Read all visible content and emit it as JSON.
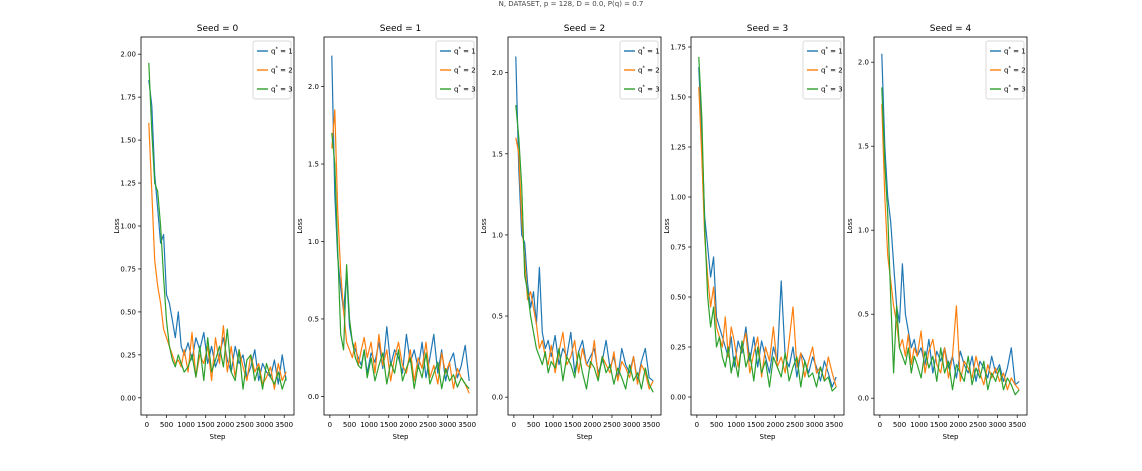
{
  "figure": {
    "suptitle": "N, DATASET, p = 128, D = 0.0, P(q) = 0.7"
  },
  "colors": {
    "series1": "#1f77b4",
    "series2": "#ff7f0e",
    "series3": "#2ca02c"
  },
  "chart_data": [
    {
      "type": "line",
      "title": "Seed = 0",
      "xlabel": "Step",
      "ylabel": "Loss",
      "xlim": [
        -150,
        3750
      ],
      "ylim": [
        -0.1,
        2.1
      ],
      "xticks": [
        0,
        500,
        1000,
        1500,
        2000,
        2500,
        3000,
        3500
      ],
      "yticks": [
        0.0,
        0.25,
        0.5,
        0.75,
        1.0,
        1.25,
        1.5,
        1.75,
        2.0
      ],
      "ytick_labels": [
        "0.00",
        "0.25",
        "0.50",
        "0.75",
        "1.00",
        "1.25",
        "1.50",
        "1.75",
        "2.00"
      ],
      "legend": "top-right",
      "grid": false,
      "x": [
        50,
        125,
        200,
        275,
        350,
        425,
        500,
        575,
        650,
        725,
        800,
        875,
        950,
        1050,
        1150,
        1250,
        1350,
        1450,
        1550,
        1650,
        1750,
        1850,
        1950,
        2050,
        2150,
        2250,
        2350,
        2450,
        2550,
        2650,
        2750,
        2850,
        2950,
        3050,
        3150,
        3250,
        3350,
        3450,
        3550
      ],
      "series": [
        {
          "name": "q* = 1",
          "color_key": "series1",
          "values": [
            1.85,
            1.7,
            1.3,
            1.1,
            0.9,
            0.95,
            0.6,
            0.55,
            0.45,
            0.35,
            0.5,
            0.3,
            0.25,
            0.32,
            0.22,
            0.35,
            0.28,
            0.38,
            0.2,
            0.3,
            0.18,
            0.25,
            0.35,
            0.22,
            0.15,
            0.3,
            0.2,
            0.25,
            0.12,
            0.18,
            0.28,
            0.1,
            0.2,
            0.15,
            0.12,
            0.22,
            0.08,
            0.25,
            0.1
          ]
        },
        {
          "name": "q* = 2",
          "color_key": "series2",
          "values": [
            1.6,
            1.2,
            0.8,
            0.65,
            0.55,
            0.4,
            0.35,
            0.3,
            0.25,
            0.2,
            0.22,
            0.18,
            0.28,
            0.15,
            0.38,
            0.12,
            0.25,
            0.2,
            0.3,
            0.1,
            0.35,
            0.2,
            0.42,
            0.15,
            0.3,
            0.12,
            0.28,
            0.18,
            0.1,
            0.25,
            0.15,
            0.2,
            0.08,
            0.12,
            0.18,
            0.05,
            0.2,
            0.1,
            0.15
          ]
        },
        {
          "name": "q* = 3",
          "color_key": "series3",
          "values": [
            1.95,
            1.55,
            1.25,
            1.2,
            1.0,
            0.7,
            0.45,
            0.3,
            0.22,
            0.18,
            0.25,
            0.2,
            0.15,
            0.18,
            0.25,
            0.12,
            0.3,
            0.1,
            0.35,
            0.15,
            0.22,
            0.3,
            0.18,
            0.4,
            0.15,
            0.1,
            0.28,
            0.05,
            0.22,
            0.25,
            0.1,
            0.18,
            0.05,
            0.2,
            0.12,
            0.08,
            0.15,
            0.05,
            0.12
          ]
        }
      ]
    },
    {
      "type": "line",
      "title": "Seed = 1",
      "xlabel": "Step",
      "ylabel": "Loss",
      "xlim": [
        -150,
        3750
      ],
      "ylim": [
        -0.12,
        2.32
      ],
      "xticks": [
        0,
        500,
        1000,
        1500,
        2000,
        2500,
        3000,
        3500
      ],
      "yticks": [
        0.0,
        0.5,
        1.0,
        1.5,
        2.0
      ],
      "ytick_labels": [
        "0.0",
        "0.5",
        "1.0",
        "1.5",
        "2.0"
      ],
      "legend": "top-right",
      "grid": false,
      "x": [
        50,
        125,
        200,
        275,
        350,
        425,
        500,
        575,
        650,
        725,
        800,
        875,
        950,
        1050,
        1150,
        1250,
        1350,
        1450,
        1550,
        1650,
        1750,
        1850,
        1950,
        2050,
        2150,
        2250,
        2350,
        2450,
        2550,
        2650,
        2750,
        2850,
        2950,
        3050,
        3150,
        3250,
        3350,
        3450,
        3550
      ],
      "series": [
        {
          "name": "q* = 1",
          "color_key": "series1",
          "values": [
            2.2,
            1.3,
            0.9,
            0.7,
            0.55,
            0.8,
            0.45,
            0.35,
            0.3,
            0.25,
            0.2,
            0.3,
            0.15,
            0.28,
            0.22,
            0.35,
            0.18,
            0.45,
            0.2,
            0.3,
            0.25,
            0.15,
            0.4,
            0.22,
            0.3,
            0.18,
            0.35,
            0.12,
            0.25,
            0.4,
            0.15,
            0.3,
            0.1,
            0.22,
            0.28,
            0.12,
            0.2,
            0.33,
            0.1
          ]
        },
        {
          "name": "q* = 2",
          "color_key": "series2",
          "values": [
            1.6,
            1.85,
            1.2,
            0.8,
            0.55,
            0.35,
            0.3,
            0.25,
            0.35,
            0.2,
            0.3,
            0.38,
            0.25,
            0.35,
            0.15,
            0.4,
            0.2,
            0.3,
            0.1,
            0.25,
            0.35,
            0.2,
            0.15,
            0.3,
            0.1,
            0.25,
            0.18,
            0.35,
            0.12,
            0.2,
            0.08,
            0.28,
            0.15,
            0.22,
            0.05,
            0.18,
            0.12,
            0.08,
            0.02
          ]
        },
        {
          "name": "q* = 3",
          "color_key": "series3",
          "values": [
            1.7,
            1.5,
            0.95,
            0.4,
            0.3,
            0.85,
            0.5,
            0.35,
            0.25,
            0.2,
            0.18,
            0.3,
            0.12,
            0.25,
            0.1,
            0.2,
            0.28,
            0.08,
            0.22,
            0.15,
            0.3,
            0.1,
            0.18,
            0.25,
            0.05,
            0.2,
            0.12,
            0.28,
            0.08,
            0.15,
            0.22,
            0.05,
            0.18,
            0.1,
            0.14,
            0.06,
            0.12,
            0.08,
            0.05
          ]
        }
      ]
    },
    {
      "type": "line",
      "title": "Seed = 2",
      "xlabel": "Step",
      "ylabel": "Loss",
      "xlim": [
        -150,
        3750
      ],
      "ylim": [
        -0.11,
        2.22
      ],
      "xticks": [
        0,
        500,
        1000,
        1500,
        2000,
        2500,
        3000,
        3500
      ],
      "yticks": [
        0.0,
        0.5,
        1.0,
        1.5,
        2.0
      ],
      "ytick_labels": [
        "0.0",
        "0.5",
        "1.0",
        "1.5",
        "2.0"
      ],
      "legend": "top-right",
      "grid": false,
      "x": [
        50,
        125,
        200,
        275,
        350,
        425,
        500,
        575,
        650,
        725,
        800,
        875,
        950,
        1050,
        1150,
        1250,
        1350,
        1450,
        1550,
        1650,
        1750,
        1850,
        1950,
        2050,
        2150,
        2250,
        2350,
        2450,
        2550,
        2650,
        2750,
        2850,
        2950,
        3050,
        3150,
        3250,
        3350,
        3450,
        3550
      ],
      "series": [
        {
          "name": "q* = 1",
          "color_key": "series1",
          "values": [
            2.1,
            1.4,
            1.0,
            0.95,
            0.7,
            0.55,
            0.65,
            0.45,
            0.8,
            0.4,
            0.3,
            0.35,
            0.25,
            0.38,
            0.2,
            0.3,
            0.25,
            0.4,
            0.15,
            0.28,
            0.35,
            0.2,
            0.25,
            0.3,
            0.15,
            0.22,
            0.35,
            0.18,
            0.25,
            0.12,
            0.3,
            0.2,
            0.15,
            0.25,
            0.1,
            0.22,
            0.3,
            0.12,
            0.1
          ]
        },
        {
          "name": "q* = 2",
          "color_key": "series2",
          "values": [
            1.6,
            1.5,
            1.1,
            0.85,
            0.6,
            0.65,
            0.55,
            0.45,
            0.3,
            0.35,
            0.25,
            0.2,
            0.32,
            0.15,
            0.28,
            0.4,
            0.2,
            0.25,
            0.35,
            0.15,
            0.3,
            0.2,
            0.18,
            0.35,
            0.12,
            0.25,
            0.2,
            0.15,
            0.28,
            0.1,
            0.22,
            0.18,
            0.12,
            0.25,
            0.08,
            0.2,
            0.15,
            0.05,
            0.1
          ]
        },
        {
          "name": "q* = 3",
          "color_key": "series3",
          "values": [
            1.8,
            1.6,
            1.3,
            0.75,
            0.65,
            0.5,
            0.4,
            0.3,
            0.25,
            0.2,
            0.28,
            0.15,
            0.22,
            0.18,
            0.3,
            0.1,
            0.25,
            0.2,
            0.12,
            0.28,
            0.15,
            0.05,
            0.22,
            0.18,
            0.1,
            0.25,
            0.15,
            0.2,
            0.08,
            0.18,
            0.12,
            0.05,
            0.2,
            0.1,
            0.15,
            0.05,
            0.18,
            0.08,
            0.03
          ]
        }
      ]
    },
    {
      "type": "line",
      "title": "Seed = 3",
      "xlabel": "Step",
      "ylabel": "Loss",
      "xlim": [
        -150,
        3750
      ],
      "ylim": [
        -0.09,
        1.8
      ],
      "xticks": [
        0,
        500,
        1000,
        1500,
        2000,
        2500,
        3000,
        3500
      ],
      "yticks": [
        0.0,
        0.25,
        0.5,
        0.75,
        1.0,
        1.25,
        1.5,
        1.75
      ],
      "ytick_labels": [
        "0.00",
        "0.25",
        "0.50",
        "0.75",
        "1.00",
        "1.25",
        "1.50",
        "1.75"
      ],
      "legend": "top-right",
      "grid": false,
      "x": [
        50,
        125,
        200,
        275,
        350,
        425,
        500,
        575,
        650,
        725,
        800,
        875,
        950,
        1050,
        1150,
        1250,
        1350,
        1450,
        1550,
        1650,
        1750,
        1850,
        1950,
        2050,
        2150,
        2250,
        2350,
        2450,
        2550,
        2650,
        2750,
        2850,
        2950,
        3050,
        3150,
        3250,
        3350,
        3450,
        3550
      ],
      "series": [
        {
          "name": "q* = 1",
          "color_key": "series1",
          "values": [
            1.65,
            1.3,
            0.9,
            0.75,
            0.6,
            0.7,
            0.4,
            0.35,
            0.3,
            0.25,
            0.2,
            0.3,
            0.15,
            0.28,
            0.22,
            0.35,
            0.18,
            0.3,
            0.15,
            0.28,
            0.2,
            0.12,
            0.25,
            0.18,
            0.58,
            0.2,
            0.15,
            0.25,
            0.1,
            0.22,
            0.18,
            0.12,
            0.2,
            0.15,
            0.08,
            0.18,
            0.12,
            0.05,
            0.1
          ]
        },
        {
          "name": "q* = 2",
          "color_key": "series2",
          "values": [
            1.55,
            1.2,
            0.8,
            0.6,
            0.45,
            0.55,
            0.35,
            0.3,
            0.25,
            0.4,
            0.2,
            0.35,
            0.28,
            0.15,
            0.25,
            0.32,
            0.12,
            0.22,
            0.3,
            0.1,
            0.25,
            0.18,
            0.35,
            0.15,
            0.2,
            0.12,
            0.28,
            0.45,
            0.15,
            0.22,
            0.1,
            0.18,
            0.25,
            0.12,
            0.15,
            0.08,
            0.2,
            0.12,
            0.05
          ]
        },
        {
          "name": "q* = 3",
          "color_key": "series3",
          "values": [
            1.7,
            1.4,
            0.85,
            0.5,
            0.35,
            0.45,
            0.25,
            0.3,
            0.2,
            0.15,
            0.25,
            0.12,
            0.2,
            0.1,
            0.28,
            0.15,
            0.22,
            0.08,
            0.25,
            0.12,
            0.18,
            0.05,
            0.2,
            0.15,
            0.1,
            0.22,
            0.08,
            0.15,
            0.2,
            0.05,
            0.18,
            0.1,
            0.12,
            0.05,
            0.15,
            0.08,
            0.1,
            0.03,
            0.05
          ]
        }
      ]
    },
    {
      "type": "line",
      "title": "Seed = 4",
      "xlabel": "Step",
      "ylabel": "Loss",
      "xlim": [
        -150,
        3750
      ],
      "ylim": [
        -0.1,
        2.15
      ],
      "xticks": [
        0,
        500,
        1000,
        1500,
        2000,
        2500,
        3000,
        3500
      ],
      "yticks": [
        0.0,
        0.5,
        1.0,
        1.5,
        2.0
      ],
      "ytick_labels": [
        "0.0",
        "0.5",
        "1.0",
        "1.5",
        "2.0"
      ],
      "legend": "top-right",
      "grid": false,
      "x": [
        50,
        125,
        200,
        275,
        350,
        425,
        500,
        575,
        650,
        725,
        800,
        875,
        950,
        1050,
        1150,
        1250,
        1350,
        1450,
        1550,
        1650,
        1750,
        1850,
        1950,
        2050,
        2150,
        2250,
        2350,
        2450,
        2550,
        2650,
        2750,
        2850,
        2950,
        3050,
        3150,
        3250,
        3350,
        3450,
        3550
      ],
      "series": [
        {
          "name": "q* = 1",
          "color_key": "series1",
          "values": [
            2.05,
            1.5,
            1.2,
            1.05,
            0.8,
            0.55,
            0.45,
            0.8,
            0.5,
            0.4,
            0.3,
            0.35,
            0.25,
            0.3,
            0.2,
            0.35,
            0.15,
            0.28,
            0.22,
            0.3,
            0.18,
            0.25,
            0.12,
            0.28,
            0.2,
            0.15,
            0.25,
            0.1,
            0.22,
            0.18,
            0.12,
            0.25,
            0.15,
            0.2,
            0.1,
            0.18,
            0.3,
            0.08,
            0.1
          ]
        },
        {
          "name": "q* = 2",
          "color_key": "series2",
          "values": [
            1.75,
            1.2,
            0.85,
            0.7,
            0.55,
            0.45,
            0.3,
            0.35,
            0.25,
            0.38,
            0.2,
            0.3,
            0.25,
            0.4,
            0.15,
            0.28,
            0.35,
            0.2,
            0.15,
            0.3,
            0.12,
            0.25,
            0.55,
            0.1,
            0.22,
            0.18,
            0.12,
            0.25,
            0.15,
            0.08,
            0.2,
            0.12,
            0.18,
            0.1,
            0.15,
            0.05,
            0.12,
            0.08,
            0.05
          ]
        },
        {
          "name": "q* = 3",
          "color_key": "series3",
          "values": [
            1.85,
            1.4,
            1.1,
            0.6,
            0.15,
            0.55,
            0.3,
            0.25,
            0.2,
            0.3,
            0.15,
            0.25,
            0.2,
            0.12,
            0.28,
            0.18,
            0.25,
            0.1,
            0.3,
            0.15,
            0.22,
            0.05,
            0.2,
            0.15,
            0.1,
            0.25,
            0.08,
            0.18,
            0.12,
            0.22,
            0.05,
            0.15,
            0.1,
            0.18,
            0.05,
            0.12,
            0.08,
            0.02,
            0.05
          ]
        }
      ]
    }
  ]
}
